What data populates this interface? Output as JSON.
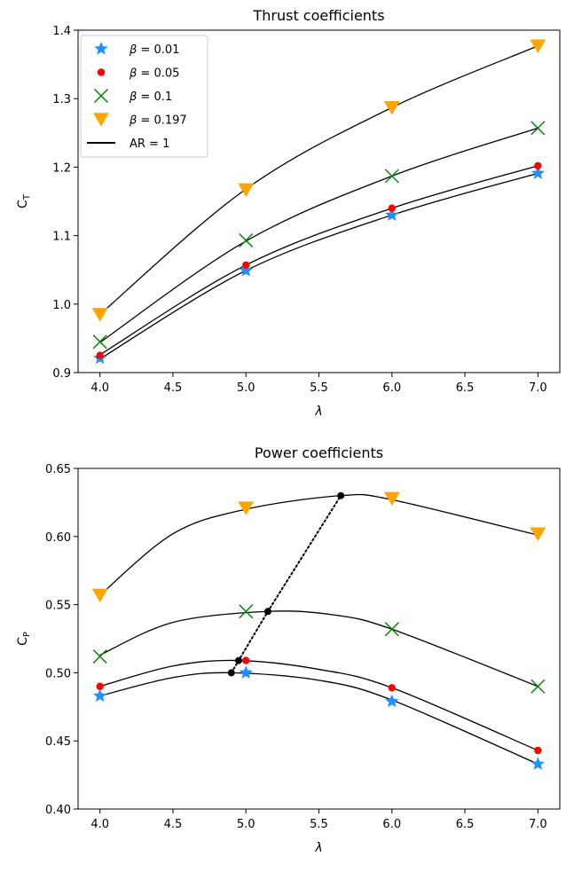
{
  "chart_data": [
    {
      "type": "line",
      "title": "Thrust coefficients",
      "xlabel": "λ",
      "ylabel": "C_T",
      "xlim": [
        3.85,
        7.15
      ],
      "ylim": [
        0.9,
        1.4
      ],
      "xticks": [
        "4.0",
        "4.5",
        "5.0",
        "5.5",
        "6.0",
        "6.5",
        "7.0"
      ],
      "yticks": [
        "0.9",
        "1.0",
        "1.1",
        "1.2",
        "1.3",
        "1.4"
      ],
      "legend": {
        "placement": "top-left",
        "entries": [
          {
            "text": "β = 0.01",
            "marker": "star",
            "color": "#1e90ff"
          },
          {
            "text": "β = 0.05",
            "marker": "circle",
            "color": "#ff0000"
          },
          {
            "text": "β = 0.1",
            "marker": "x",
            "color": "#008000"
          },
          {
            "text": "β = 0.197",
            "marker": "triangle-down",
            "color": "#ffa500"
          },
          {
            "text": "AR = 1",
            "marker": "line",
            "color": "#000000"
          }
        ]
      },
      "series": [
        {
          "marker": "star",
          "color": "#1e90ff",
          "x": [
            4,
            5,
            6,
            7
          ],
          "y": [
            0.921,
            1.049,
            1.13,
            1.191
          ]
        },
        {
          "marker": "circle",
          "color": "#ff0000",
          "x": [
            4,
            5,
            6,
            7
          ],
          "y": [
            0.925,
            1.057,
            1.14,
            1.202
          ]
        },
        {
          "marker": "x",
          "color": "#008000",
          "x": [
            4,
            5,
            6,
            7
          ],
          "y": [
            0.945,
            1.093,
            1.187,
            1.257
          ]
        },
        {
          "marker": "triangle-down",
          "color": "#ffa500",
          "x": [
            4,
            5,
            6,
            7
          ],
          "y": [
            0.985,
            1.167,
            1.287,
            1.377
          ]
        }
      ],
      "curves": [
        {
          "x": [
            4,
            5,
            6,
            7
          ],
          "y": [
            0.92,
            1.049,
            1.13,
            1.191
          ]
        },
        {
          "x": [
            4,
            5,
            6,
            7
          ],
          "y": [
            0.926,
            1.057,
            1.14,
            1.202
          ]
        },
        {
          "x": [
            4,
            5,
            6,
            7
          ],
          "y": [
            0.944,
            1.092,
            1.187,
            1.257
          ]
        },
        {
          "x": [
            4,
            5,
            6,
            7
          ],
          "y": [
            0.985,
            1.168,
            1.287,
            1.377
          ]
        }
      ]
    },
    {
      "type": "line",
      "title": "Power coefficients",
      "xlabel": "λ",
      "ylabel": "C_P",
      "xlim": [
        3.85,
        7.15
      ],
      "ylim": [
        0.4,
        0.65
      ],
      "xticks": [
        "4.0",
        "4.5",
        "5.0",
        "5.5",
        "6.0",
        "6.5",
        "7.0"
      ],
      "yticks": [
        "0.40",
        "0.45",
        "0.50",
        "0.55",
        "0.60",
        "0.65"
      ],
      "series": [
        {
          "marker": "star",
          "color": "#1e90ff",
          "x": [
            4,
            5,
            6,
            7
          ],
          "y": [
            0.483,
            0.5,
            0.479,
            0.433
          ]
        },
        {
          "marker": "circle",
          "color": "#ff0000",
          "x": [
            4,
            5,
            6,
            7
          ],
          "y": [
            0.49,
            0.509,
            0.489,
            0.443
          ]
        },
        {
          "marker": "x",
          "color": "#008000",
          "x": [
            4,
            5,
            6,
            7
          ],
          "y": [
            0.512,
            0.545,
            0.532,
            0.49
          ]
        },
        {
          "marker": "triangle-down",
          "color": "#ffa500",
          "x": [
            4,
            5,
            6,
            7
          ],
          "y": [
            0.557,
            0.621,
            0.628,
            0.602
          ]
        }
      ],
      "curves": [
        {
          "x": [
            4,
            4.5,
            4.9,
            5.5,
            6,
            7
          ],
          "y": [
            0.483,
            0.4965,
            0.5,
            0.4945,
            0.48,
            0.433
          ]
        },
        {
          "x": [
            4,
            4.5,
            4.95,
            5.5,
            6,
            7
          ],
          "y": [
            0.49,
            0.505,
            0.509,
            0.5025,
            0.489,
            0.443
          ]
        },
        {
          "x": [
            4,
            4.5,
            5.15,
            5.6,
            6,
            7
          ],
          "y": [
            0.513,
            0.537,
            0.545,
            0.5425,
            0.532,
            0.49
          ]
        },
        {
          "x": [
            4,
            4.5,
            5.0,
            5.65,
            6,
            7
          ],
          "y": [
            0.557,
            0.602,
            0.62,
            0.63,
            0.627,
            0.601
          ]
        }
      ],
      "optimum_points": {
        "x": [
          4.9,
          4.95,
          5.15,
          5.65
        ],
        "y": [
          0.5,
          0.509,
          0.545,
          0.63
        ],
        "style": "dotted",
        "color": "#000000"
      }
    }
  ],
  "labels": {
    "top_title": "Thrust coefficients",
    "bottom_title": "Power coefficients",
    "xlabel": "λ",
    "top_ylabel": "C",
    "top_ylabel_sub": "T",
    "bottom_ylabel": "C",
    "bottom_ylabel_sub": "P"
  }
}
